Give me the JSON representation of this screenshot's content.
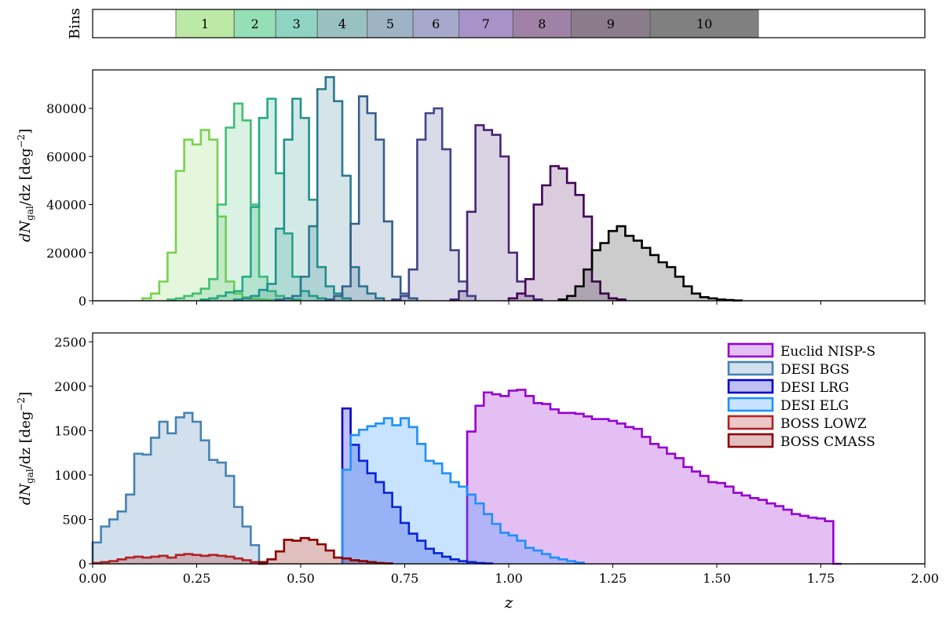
{
  "figure": {
    "xlabel": "z"
  },
  "colors": {
    "bin_colors": [
      "#79d151",
      "#41be71",
      "#22a884",
      "#21918c",
      "#2a788e",
      "#355f8d",
      "#414487",
      "#482475",
      "#440154",
      "#000000"
    ],
    "strip_fills": [
      "#bce9a6",
      "#95dfb5",
      "#8fd3c3",
      "#9ac1c2",
      "#9eb4c4",
      "#a6a9cb",
      "#a793c7",
      "#9f82a6",
      "#8b7c8b",
      "#808080"
    ],
    "survey_colors": [
      "#9400d3",
      "#4682b4",
      "#0000cd",
      "#1e90ff",
      "#b22222",
      "#8b0000"
    ]
  },
  "chart_data": [
    {
      "type": "table",
      "panel": "bins-strip",
      "ylabel": "Bins",
      "bins": [
        {
          "label": "1",
          "zmin": 0.2,
          "zmax": 0.34
        },
        {
          "label": "2",
          "zmin": 0.34,
          "zmax": 0.44
        },
        {
          "label": "3",
          "zmin": 0.44,
          "zmax": 0.54
        },
        {
          "label": "4",
          "zmin": 0.54,
          "zmax": 0.66
        },
        {
          "label": "5",
          "zmin": 0.66,
          "zmax": 0.77
        },
        {
          "label": "6",
          "zmin": 0.77,
          "zmax": 0.88
        },
        {
          "label": "7",
          "zmin": 0.88,
          "zmax": 1.01
        },
        {
          "label": "8",
          "zmin": 1.01,
          "zmax": 1.15
        },
        {
          "label": "9",
          "zmin": 1.15,
          "zmax": 1.34
        },
        {
          "label": "10",
          "zmin": 1.34,
          "zmax": 1.6
        }
      ],
      "xlim": [
        0,
        2
      ]
    },
    {
      "type": "area",
      "panel": "tomographic-bins",
      "ylabel": "dN_gal/dz [deg^-2]",
      "ylabel_main": "dN",
      "ylabel_sub": "gal",
      "ylabel_tail": "/dz [deg",
      "ylabel_sup": "−2",
      "ylabel_end": "]",
      "xlim": [
        0,
        2
      ],
      "ylim": [
        0,
        96000
      ],
      "yticks": [
        "0",
        "20000",
        "40000",
        "60000",
        "80000"
      ],
      "ytick_values": [
        0,
        20000,
        40000,
        60000,
        80000
      ],
      "step": 0.02,
      "series": [
        {
          "x_start": 0.12,
          "values": [
            1000,
            3000,
            8000,
            20000,
            54000,
            67000,
            65000,
            71000,
            67000,
            35000,
            8000,
            3000,
            1500,
            800,
            500,
            300
          ]
        },
        {
          "x_start": 0.18,
          "values": [
            500,
            1000,
            2000,
            3000,
            5000,
            9000,
            40000,
            72000,
            82000,
            75000,
            40000,
            10000,
            4000,
            2000,
            1000,
            500
          ]
        },
        {
          "x_start": 0.26,
          "values": [
            500,
            1000,
            2000,
            3500,
            4000,
            10000,
            39000,
            76000,
            84000,
            53000,
            28000,
            10000,
            4000,
            2000,
            1000
          ]
        },
        {
          "x_start": 0.34,
          "values": [
            500,
            1000,
            2000,
            4500,
            7000,
            30000,
            67000,
            84000,
            76000,
            42000,
            14000,
            6000,
            3000,
            1000
          ]
        },
        {
          "x_start": 0.44,
          "values": [
            500,
            1000,
            2000,
            10000,
            31000,
            88000,
            93000,
            83000,
            52000,
            14000,
            6000,
            3000,
            1000
          ]
        },
        {
          "x_start": 0.56,
          "values": [
            500,
            2000,
            6000,
            32000,
            85000,
            78000,
            67000,
            33000,
            10000,
            3000,
            1000
          ]
        },
        {
          "x_start": 0.72,
          "values": [
            500,
            2000,
            13000,
            67000,
            78000,
            80000,
            63000,
            21000,
            8000,
            2000
          ]
        },
        {
          "x_start": 0.86,
          "values": [
            500,
            4000,
            37000,
            73000,
            71000,
            69000,
            60000,
            20000,
            8000,
            2000,
            500
          ]
        },
        {
          "x_start": 1.0,
          "values": [
            1000,
            3000,
            9000,
            40000,
            48000,
            56000,
            55000,
            49000,
            44000,
            35000,
            8000,
            3000,
            1000,
            500
          ]
        },
        {
          "x_start": 1.12,
          "values": [
            500,
            2000,
            6000,
            13000,
            21000,
            24000,
            29000,
            31000,
            27000,
            25000,
            22000,
            19000,
            16000,
            14000,
            10000,
            6000,
            3000,
            1500,
            1000,
            500,
            300,
            100
          ]
        }
      ]
    },
    {
      "type": "area",
      "panel": "surveys",
      "ylabel": "dN_gal/dz [deg^-2]",
      "ylabel_main": "dN",
      "ylabel_sub": "gal",
      "ylabel_tail": "/dz [deg",
      "ylabel_sup": "−2",
      "ylabel_end": "]",
      "xlabel": "z",
      "xlim": [
        0,
        2
      ],
      "ylim": [
        0,
        2600
      ],
      "xticks": [
        "0.00",
        "0.25",
        "0.50",
        "0.75",
        "1.00",
        "1.25",
        "1.50",
        "1.75",
        "2.00"
      ],
      "xtick_values": [
        0,
        0.25,
        0.5,
        0.75,
        1.0,
        1.25,
        1.5,
        1.75,
        2.0
      ],
      "yticks": [
        "0",
        "500",
        "1000",
        "1500",
        "2000",
        "2500"
      ],
      "ytick_values": [
        0,
        500,
        1000,
        1500,
        2000,
        2500
      ],
      "step": 0.02,
      "legend_position": "top-right",
      "series": [
        {
          "name": "Euclid NISP-S",
          "x_start": 0.9,
          "values": [
            1490,
            1780,
            1930,
            1910,
            1890,
            1950,
            1960,
            1890,
            1810,
            1800,
            1740,
            1700,
            1700,
            1690,
            1660,
            1630,
            1630,
            1610,
            1580,
            1540,
            1520,
            1430,
            1350,
            1310,
            1240,
            1190,
            1090,
            1040,
            990,
            920,
            910,
            870,
            800,
            770,
            740,
            720,
            680,
            650,
            610,
            560,
            540,
            520,
            510,
            480,
            0
          ]
        },
        {
          "name": "DESI BGS",
          "x_start": 0.0,
          "values": [
            240,
            420,
            500,
            590,
            780,
            1240,
            1230,
            1420,
            1600,
            1470,
            1650,
            1700,
            1600,
            1390,
            1170,
            1140,
            990,
            640,
            420,
            210,
            0
          ]
        },
        {
          "name": "DESI LRG",
          "x_start": 0.6,
          "values": [
            1750,
            1340,
            1160,
            1020,
            920,
            800,
            640,
            460,
            340,
            260,
            170,
            120,
            80,
            50,
            30,
            20,
            10,
            5
          ]
        },
        {
          "name": "DESI ELG",
          "x_start": 0.6,
          "values": [
            1060,
            1450,
            1510,
            1550,
            1580,
            1640,
            1560,
            1640,
            1540,
            1350,
            1160,
            1130,
            1020,
            920,
            870,
            780,
            680,
            560,
            450,
            350,
            320,
            260,
            180,
            150,
            110,
            70,
            50,
            30,
            15
          ]
        },
        {
          "name": "BOSS LOWZ",
          "x_start": 0.0,
          "values": [
            10,
            20,
            30,
            50,
            70,
            80,
            70,
            80,
            90,
            70,
            100,
            110,
            100,
            90,
            100,
            90,
            80,
            60,
            40,
            20,
            0
          ]
        },
        {
          "name": "BOSS CMASS",
          "x_start": 0.4,
          "values": [
            20,
            50,
            140,
            270,
            260,
            290,
            270,
            220,
            150,
            70,
            60,
            40,
            30,
            20,
            10,
            5
          ]
        }
      ]
    }
  ]
}
